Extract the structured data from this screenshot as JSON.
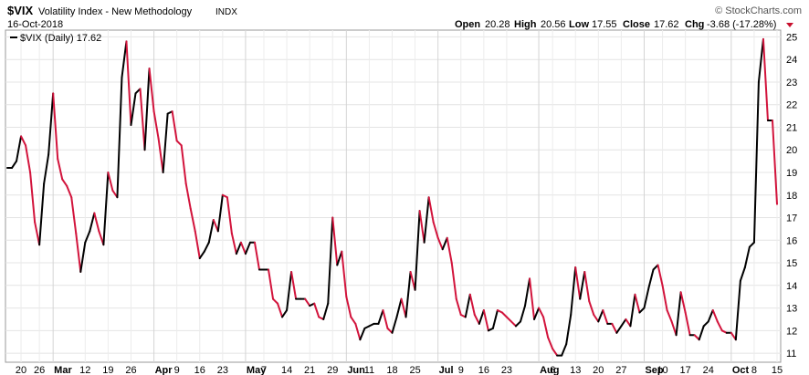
{
  "header": {
    "ticker": "$VIX",
    "name": "Volatility Index - New Methodology",
    "exchange": "INDX",
    "date": "16-Oct-2018",
    "watermark": "© StockCharts.com",
    "open_label": "Open",
    "open_value": "20.28",
    "high_label": "High",
    "high_value": "20.56",
    "low_label": "Low",
    "low_value": "17.55",
    "close_label": "Close",
    "close_value": "17.62",
    "chg_label": "Chg",
    "chg_value": "-3.68 (-17.28%)",
    "down_color": "#c8102e"
  },
  "legend": {
    "text": "$VIX (Daily) 17.62"
  },
  "chart_data": {
    "type": "line",
    "ylim": [
      10.6,
      25.3
    ],
    "yticks": [
      11,
      12,
      13,
      14,
      15,
      16,
      17,
      18,
      19,
      20,
      21,
      22,
      23,
      24,
      25
    ],
    "grid": true,
    "up_color": "#000000",
    "down_color": "#d2143c",
    "values": [
      19.2,
      19.2,
      19.5,
      20.6,
      20.2,
      19.0,
      16.8,
      15.8,
      18.5,
      19.8,
      22.5,
      19.6,
      18.7,
      18.4,
      17.9,
      16.3,
      14.6,
      15.9,
      16.4,
      17.2,
      16.4,
      15.8,
      19.0,
      18.2,
      17.9,
      23.2,
      24.8,
      21.1,
      22.5,
      22.7,
      20.0,
      23.6,
      21.7,
      20.5,
      19.0,
      21.6,
      21.7,
      20.4,
      20.2,
      18.5,
      17.4,
      16.4,
      15.2,
      15.5,
      15.9,
      16.9,
      16.4,
      18.0,
      17.9,
      16.3,
      15.4,
      15.9,
      15.4,
      15.9,
      15.9,
      14.7,
      14.7,
      14.7,
      13.4,
      13.2,
      12.6,
      12.9,
      14.6,
      13.4,
      13.4,
      13.4,
      13.1,
      13.2,
      12.6,
      12.5,
      13.2,
      17.0,
      14.9,
      15.5,
      13.5,
      12.6,
      12.3,
      11.6,
      12.1,
      12.2,
      12.3,
      12.3,
      12.9,
      12.1,
      11.9,
      12.6,
      13.4,
      12.6,
      14.6,
      13.8,
      17.3,
      15.9,
      17.9,
      16.8,
      16.1,
      15.6,
      16.1,
      15.0,
      13.4,
      12.7,
      12.6,
      13.6,
      12.7,
      12.3,
      12.9,
      12.0,
      12.1,
      12.9,
      12.8,
      12.6,
      12.4,
      12.2,
      12.4,
      13.1,
      14.3,
      12.5,
      13.0,
      12.6,
      11.7,
      11.2,
      10.9,
      10.9,
      11.4,
      12.7,
      14.8,
      13.4,
      14.6,
      13.3,
      12.7,
      12.4,
      12.9,
      12.3,
      12.3,
      11.9,
      12.2,
      12.5,
      12.2,
      13.6,
      12.8,
      13.0,
      13.9,
      14.7,
      14.9,
      14.0,
      12.9,
      12.4,
      11.8,
      13.7,
      12.8,
      11.8,
      11.8,
      11.6,
      12.2,
      12.4,
      12.9,
      12.4,
      12.0,
      11.9,
      11.9,
      11.6,
      14.2,
      14.8,
      15.7,
      15.9,
      23.0,
      24.9,
      21.3,
      21.3,
      17.6
    ],
    "x_ticks": [
      {
        "label": "20",
        "index": 3,
        "major": false
      },
      {
        "label": "26",
        "index": 7,
        "major": false
      },
      {
        "label": "Mar",
        "index": 10,
        "major": true
      },
      {
        "label": "12",
        "index": 17,
        "major": false
      },
      {
        "label": "19",
        "index": 22,
        "major": false
      },
      {
        "label": "26",
        "index": 27,
        "major": false
      },
      {
        "label": "Apr",
        "index": 32,
        "major": true
      },
      {
        "label": "9",
        "index": 37,
        "major": false
      },
      {
        "label": "16",
        "index": 42,
        "major": false
      },
      {
        "label": "23",
        "index": 47,
        "major": false
      },
      {
        "label": "May",
        "index": 52,
        "major": true
      },
      {
        "label": "7",
        "index": 56,
        "major": false
      },
      {
        "label": "14",
        "index": 61,
        "major": false
      },
      {
        "label": "21",
        "index": 66,
        "major": false
      },
      {
        "label": "29",
        "index": 71,
        "major": false
      },
      {
        "label": "Jun",
        "index": 74,
        "major": true
      },
      {
        "label": "11",
        "index": 79,
        "major": false
      },
      {
        "label": "18",
        "index": 84,
        "major": false
      },
      {
        "label": "25",
        "index": 89,
        "major": false
      },
      {
        "label": "Jul",
        "index": 94,
        "major": true
      },
      {
        "label": "9",
        "index": 99,
        "major": false
      },
      {
        "label": "16",
        "index": 104,
        "major": false
      },
      {
        "label": "23",
        "index": 109,
        "major": false
      },
      {
        "label": "Aug",
        "index": 116,
        "major": true
      },
      {
        "label": "6",
        "index": 119,
        "major": false
      },
      {
        "label": "13",
        "index": 124,
        "major": false
      },
      {
        "label": "20",
        "index": 129,
        "major": false
      },
      {
        "label": "27",
        "index": 134,
        "major": false
      },
      {
        "label": "Sep",
        "index": 139,
        "major": true
      },
      {
        "label": "10",
        "index": 143,
        "major": false
      },
      {
        "label": "17",
        "index": 148,
        "major": false
      },
      {
        "label": "24",
        "index": 153,
        "major": false
      },
      {
        "label": "Oct",
        "index": 158,
        "major": true
      },
      {
        "label": "8",
        "index": 163,
        "major": false
      },
      {
        "label": "15",
        "index": 168,
        "major": false
      }
    ]
  }
}
